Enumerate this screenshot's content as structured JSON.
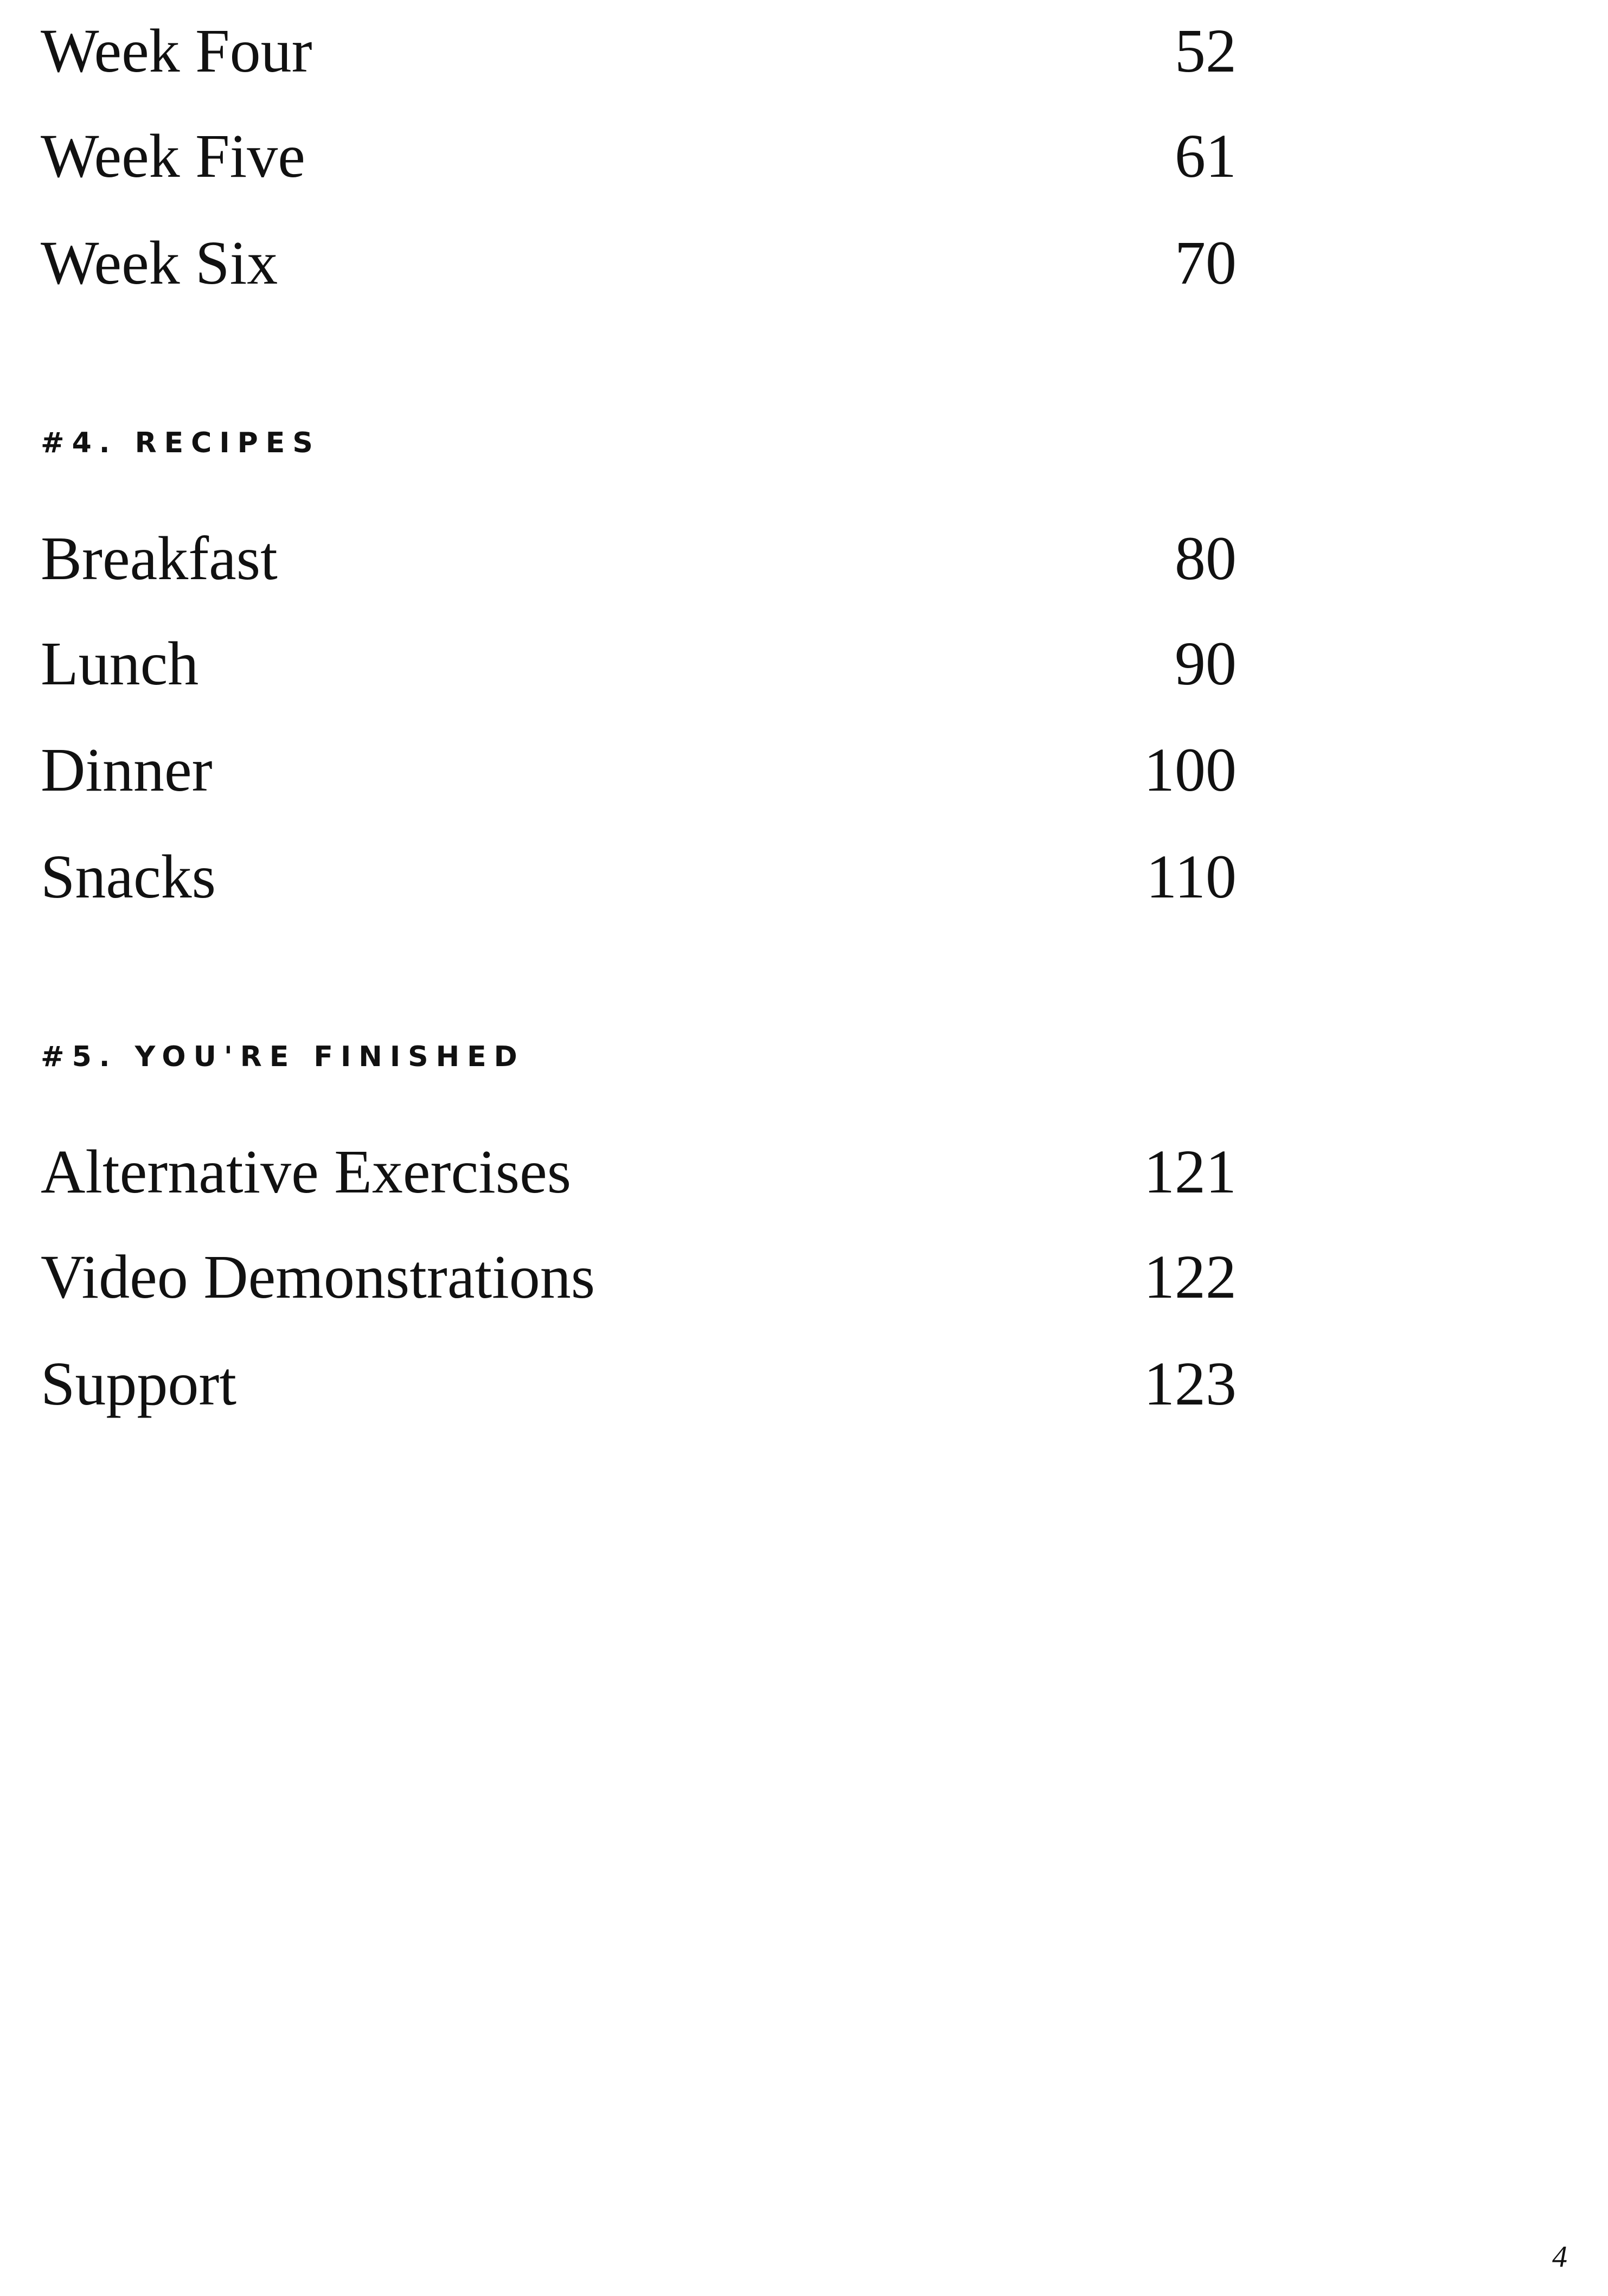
{
  "toc": {
    "top_entries": [
      {
        "label": "Week Four",
        "page": "52"
      },
      {
        "label": "Week Five",
        "page": "61"
      },
      {
        "label": "Week Six",
        "page": "70"
      }
    ],
    "sections": [
      {
        "heading": "#4. RECIPES",
        "entries": [
          {
            "label": "Breakfast",
            "page": "80"
          },
          {
            "label": "Lunch",
            "page": "90"
          },
          {
            "label": "Dinner",
            "page": "100"
          },
          {
            "label": "Snacks",
            "page": "110"
          }
        ]
      },
      {
        "heading": "#5. YOU'RE FINISHED",
        "entries": [
          {
            "label": "Alternative Exercises",
            "page": "121"
          },
          {
            "label": "Video Demonstrations",
            "page": "122"
          },
          {
            "label": "Support",
            "page": "123"
          }
        ]
      }
    ]
  },
  "page_number": "4"
}
